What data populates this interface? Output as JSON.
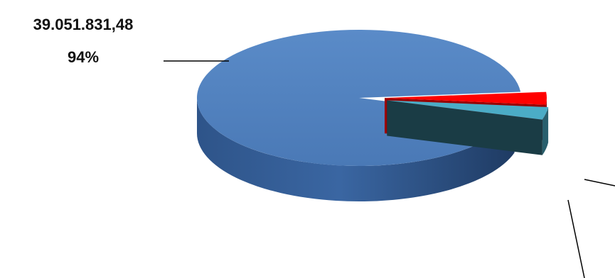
{
  "chart_data": {
    "type": "pie",
    "style": "3d-exploded",
    "title": "",
    "slices": [
      {
        "value": 39051831.48,
        "value_label": "39.051.831,48",
        "percent": 94,
        "percent_label": "94%",
        "color": "#4F81BD"
      },
      {
        "percent": 3,
        "color": "#FF0000"
      },
      {
        "percent": 3,
        "color": "#4BACC6"
      }
    ],
    "legend": "none"
  }
}
